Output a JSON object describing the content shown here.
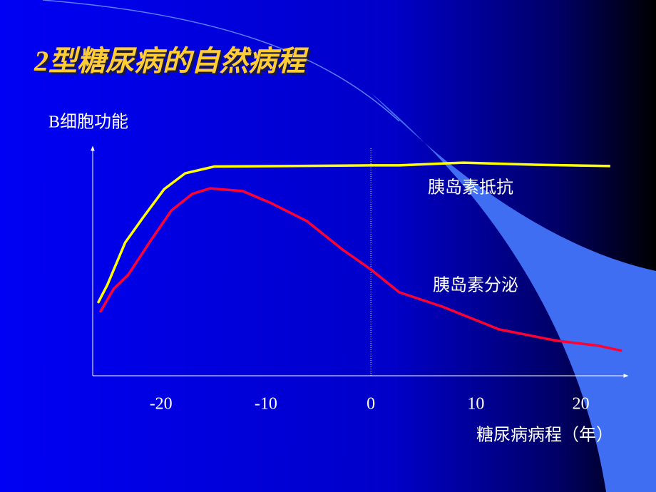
{
  "chart_data": {
    "type": "line",
    "title": "2型糖尿病的自然病程",
    "y_label": "B细胞功能",
    "x_label": "糖尿病病程（年）",
    "xlim": [
      -26.5,
      24.1
    ],
    "ylim": [
      0,
      100
    ],
    "xticks": [
      -20,
      -10,
      0,
      10,
      20
    ],
    "series": [
      {
        "name": "胰岛素抵抗",
        "color": "#ffff00",
        "x": [
          -26.0,
          -25.1,
          -23.4,
          -21.7,
          -19.7,
          -17.7,
          -14.9,
          -8.2,
          0,
          2.7,
          8.8,
          15.6,
          22.8
        ],
        "values": [
          32,
          40,
          58.6,
          69.6,
          82,
          89,
          92,
          92.2,
          92.5,
          92.5,
          93.7,
          92.8,
          92.2
        ]
      },
      {
        "name": "胰岛素分泌",
        "color": "#ff0033",
        "x": [
          -25.8,
          -24.5,
          -23.1,
          -21.1,
          -19.0,
          -17.0,
          -15.3,
          -12.2,
          -9.5,
          -6.1,
          -2.7,
          0,
          2.7,
          6.8,
          12.2,
          17.7,
          21.7,
          23.9
        ],
        "values": [
          27.9,
          38.2,
          44.5,
          58.6,
          72.7,
          80,
          82.4,
          81.2,
          75.9,
          68,
          55.5,
          46.7,
          36.7,
          30.4,
          20.4,
          15.4,
          13.2,
          11
        ]
      }
    ]
  }
}
